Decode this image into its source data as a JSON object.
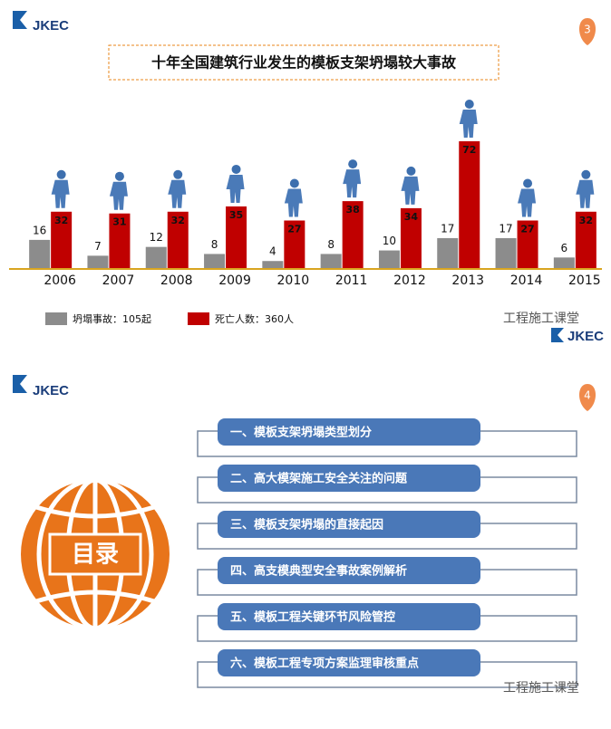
{
  "chart_data": {
    "type": "bar",
    "title": "十年全国建筑行业发生的模板支架坍塌较大事故",
    "categories": [
      "2006",
      "2007",
      "2008",
      "2009",
      "2010",
      "2011",
      "2012",
      "2013",
      "2014",
      "2015"
    ],
    "series": [
      {
        "name": "坍塌事故：105起",
        "color": "#8c8c8c",
        "values": [
          16,
          7,
          12,
          8,
          4,
          8,
          10,
          17,
          17,
          6
        ]
      },
      {
        "name": "死亡人数：360人",
        "color": "#c00000",
        "values": [
          32,
          31,
          32,
          35,
          27,
          38,
          34,
          72,
          27,
          32
        ]
      }
    ]
  },
  "slide1": {
    "logo": "JKEC",
    "page": "3",
    "watermark": "工程施工课堂",
    "footer_logo": "JKEC"
  },
  "slide2": {
    "logo": "JKEC",
    "page": "4",
    "globe_label": "目录",
    "watermark": "工程施工课堂",
    "items": [
      "一、模板支架坍塌类型划分",
      "二、高大模架施工安全关注的问题",
      "三、模板支架坍塌的直接起因",
      "四、高支模典型安全事故案例解析",
      "五、模板工程关键环节风险管控",
      "六、模板工程专项方案监理审核重点"
    ]
  }
}
